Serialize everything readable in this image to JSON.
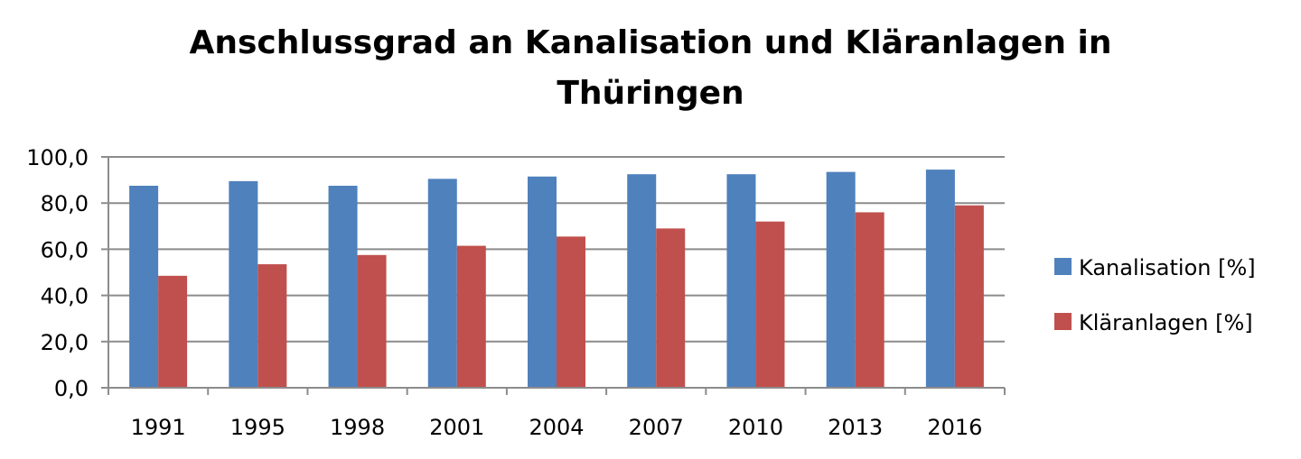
{
  "chart_data": {
    "type": "bar",
    "title_line1": "Anschlussgrad an Kanalisation und Kläranlagen in",
    "title_line2": "Thüringen",
    "categories": [
      "1991",
      "1995",
      "1998",
      "2001",
      "2004",
      "2007",
      "2010",
      "2013",
      "2016"
    ],
    "series": [
      {
        "name": "Kanalisation [%]",
        "color": "#4F81BD",
        "values": [
          87.5,
          89.5,
          87.5,
          90.5,
          91.5,
          92.5,
          92.5,
          93.5,
          94.5
        ]
      },
      {
        "name": "Kläranlagen [%]",
        "color": "#C0504D",
        "values": [
          48.5,
          53.5,
          57.5,
          61.5,
          65.5,
          69.0,
          72.0,
          76.0,
          79.0
        ]
      }
    ],
    "yticks": [
      "0,0",
      "20,0",
      "40,0",
      "60,0",
      "80,0",
      "100,0"
    ],
    "ylim": [
      0,
      100
    ],
    "grid": true,
    "legend_position": "right"
  }
}
